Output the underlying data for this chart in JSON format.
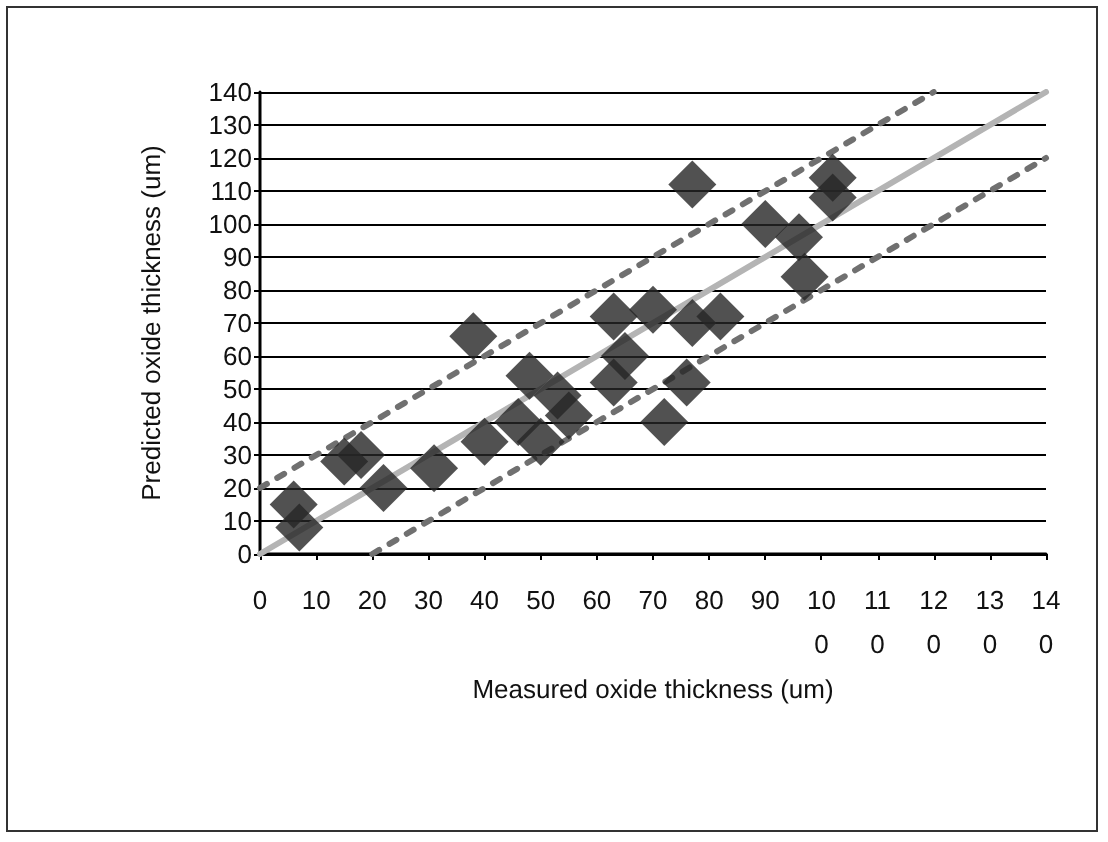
{
  "chart_data": {
    "type": "scatter",
    "xlabel": "Measured oxide thickness (um)",
    "ylabel": "Predicted oxide thickness (um)",
    "xlim": [
      0,
      140
    ],
    "xticks": [
      0,
      10,
      20,
      30,
      40,
      50,
      60,
      70,
      80,
      90,
      100,
      110,
      120,
      130,
      140
    ],
    "ylim": [
      0,
      140
    ],
    "yticks": [
      0,
      10,
      20,
      30,
      40,
      50,
      60,
      70,
      80,
      90,
      100,
      110,
      120,
      130,
      140
    ],
    "grid": "y",
    "marker": "diamond",
    "series": [
      {
        "color": "#262626",
        "x": [
          6,
          7,
          15,
          18,
          22,
          31,
          38,
          40,
          46,
          50,
          48,
          53,
          55,
          63,
          63,
          65,
          70,
          72,
          76,
          77,
          82,
          77,
          90,
          96,
          97,
          102,
          102
        ],
        "values": [
          15,
          8,
          28,
          30,
          20,
          26,
          66,
          34,
          40,
          34,
          54,
          48,
          42,
          72,
          52,
          60,
          74,
          40,
          52,
          70,
          72,
          112,
          100,
          96,
          84,
          108,
          114
        ]
      },
      {
        "type": "line",
        "color": "#b4b4b4",
        "marker": "none",
        "line_style": "solid",
        "x": [
          0,
          140
        ],
        "values": [
          0,
          140
        ]
      },
      {
        "type": "line",
        "color": "#707070",
        "marker": "none",
        "line_style": "dashed",
        "x": [
          0,
          120
        ],
        "values": [
          20,
          140
        ]
      },
      {
        "type": "line",
        "color": "#707070",
        "marker": "none",
        "line_style": "dashed",
        "x": [
          20,
          140
        ],
        "values": [
          0,
          120
        ]
      }
    ]
  }
}
